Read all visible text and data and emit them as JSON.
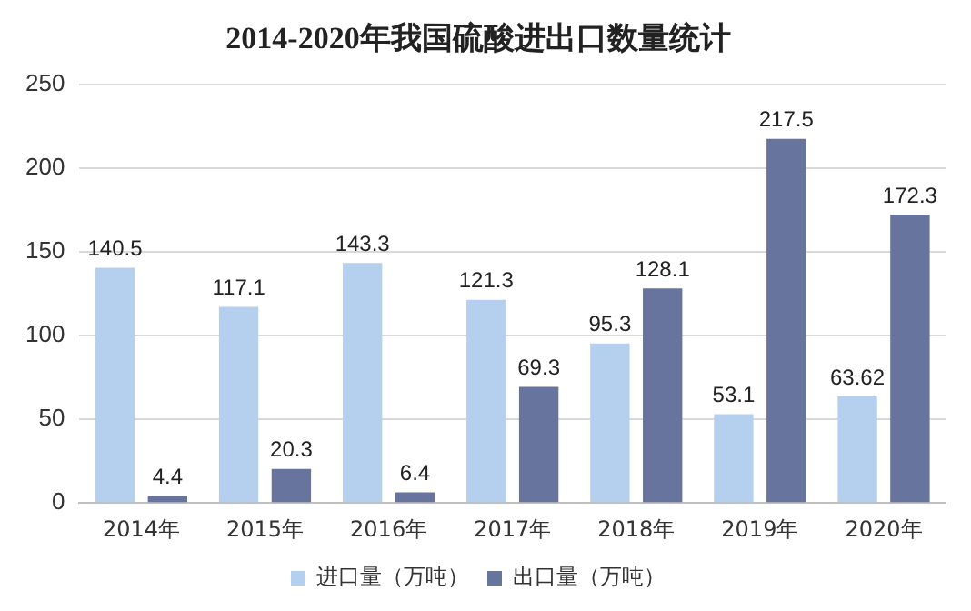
{
  "chart_data": {
    "type": "bar",
    "title": "2014-2020年我国硫酸进出口数量统计",
    "categories": [
      "2014年",
      "2015年",
      "2016年",
      "2017年",
      "2018年",
      "2019年",
      "2020年"
    ],
    "series": [
      {
        "name": "进口量（万吨）",
        "color": "#b5d0ee",
        "values": [
          140.5,
          117.1,
          143.3,
          121.3,
          95.3,
          53.1,
          63.62
        ]
      },
      {
        "name": "出口量（万吨）",
        "color": "#67749e",
        "values": [
          4.4,
          20.3,
          6.4,
          69.3,
          128.1,
          217.5,
          172.3
        ]
      }
    ],
    "ylim": [
      0,
      250
    ],
    "yticks": [
      0,
      50,
      100,
      150,
      200,
      250
    ],
    "grid": "y",
    "legend": "bottom",
    "data_labels": true
  }
}
